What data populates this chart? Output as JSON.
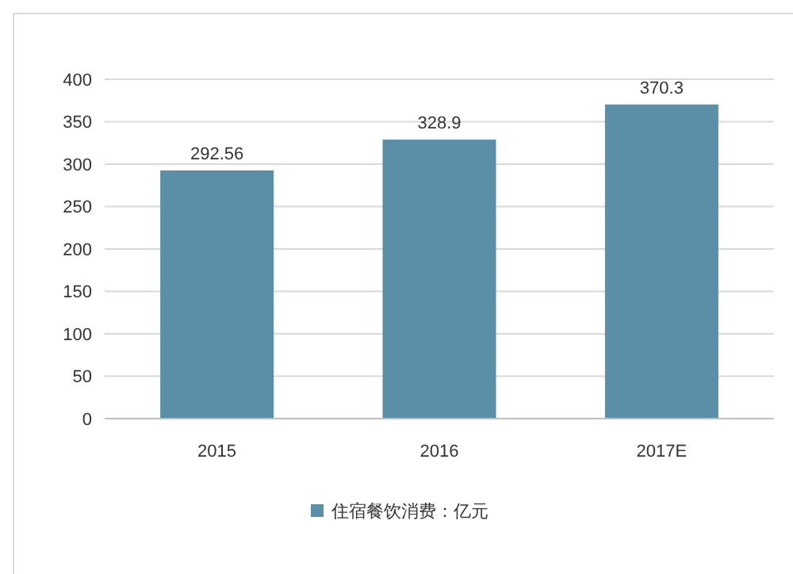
{
  "chart_data": {
    "type": "bar",
    "categories": [
      "2015",
      "2016",
      "2017E"
    ],
    "series": [
      {
        "name": "住宿餐饮消费：亿元",
        "color": "#5b8fa8",
        "values": [
          292.56,
          328.9,
          370.3
        ]
      }
    ],
    "ylim": [
      0,
      400
    ],
    "yticks": [
      0,
      50,
      100,
      150,
      200,
      250,
      300,
      350,
      400
    ],
    "grid": "y",
    "legend": "bottom",
    "data_labels": true
  }
}
